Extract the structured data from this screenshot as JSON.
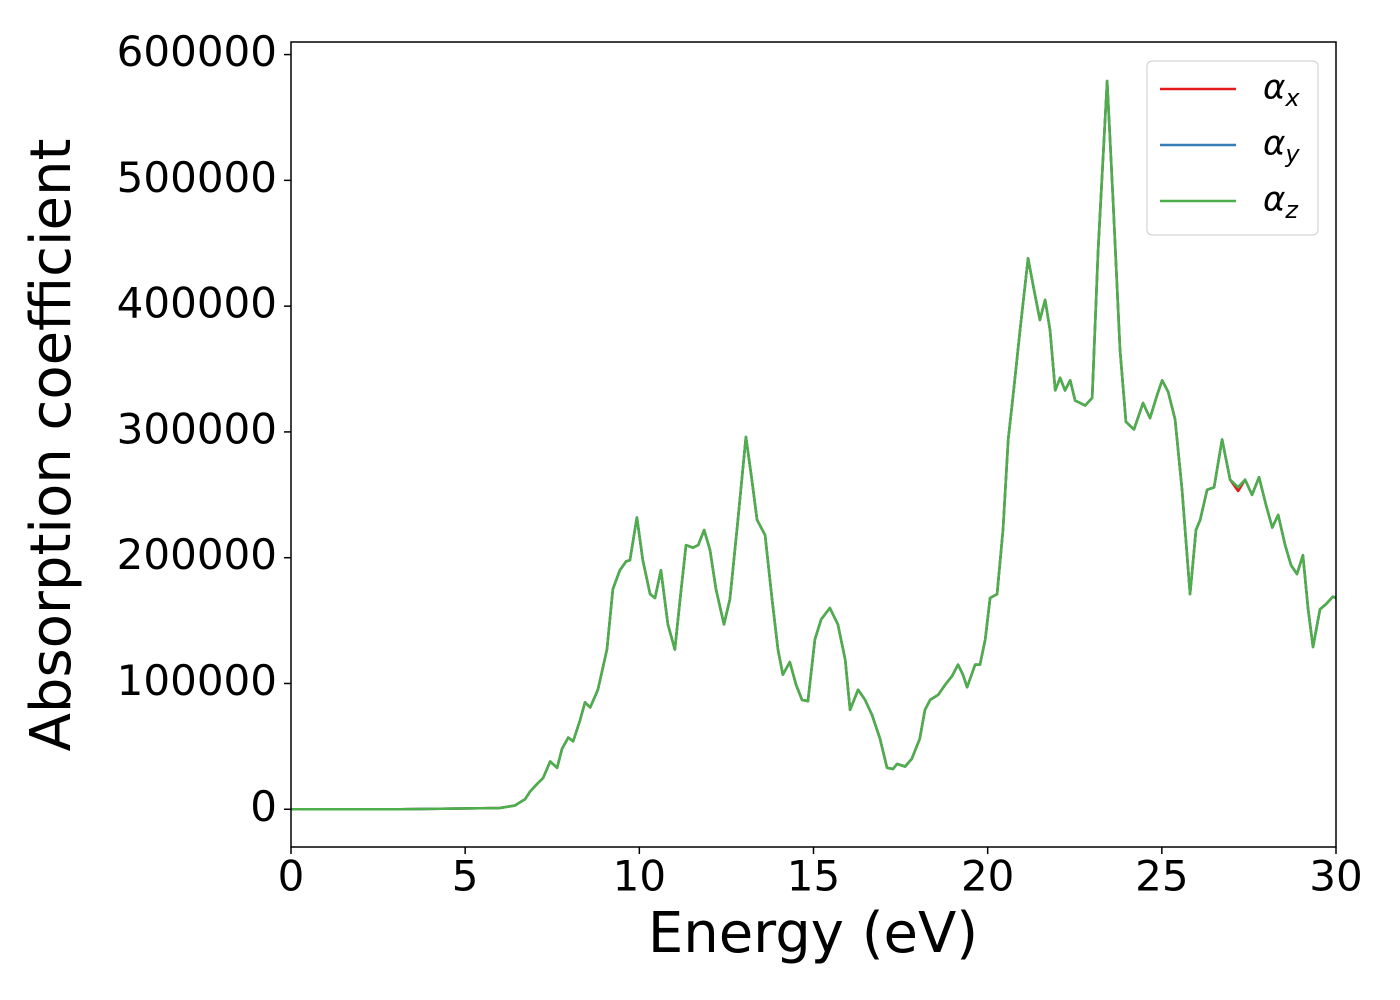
{
  "chart_data": {
    "type": "line",
    "xlabel": "Energy (eV)",
    "ylabel": "Absorption coefficient",
    "xlim": [
      0,
      30
    ],
    "xticks": [
      0,
      5,
      10,
      15,
      20,
      25,
      30
    ],
    "ylim": [
      -30000,
      610000
    ],
    "yticks": [
      0,
      100000,
      200000,
      300000,
      400000,
      500000,
      600000
    ],
    "grid": false,
    "legend": "upper right",
    "x": [
      0,
      3.13,
      5.99,
      6.43,
      6.72,
      6.86,
      7.06,
      7.24,
      7.44,
      7.64,
      7.78,
      7.96,
      8.1,
      8.3,
      8.44,
      8.59,
      8.81,
      9.07,
      9.24,
      9.44,
      9.62,
      9.73,
      9.93,
      10.1,
      10.31,
      10.45,
      10.62,
      10.82,
      11.02,
      11.17,
      11.34,
      11.54,
      11.69,
      11.86,
      12.03,
      12.2,
      12.43,
      12.6,
      12.83,
      13.06,
      13.23,
      13.38,
      13.61,
      13.81,
      13.98,
      14.12,
      14.32,
      14.5,
      14.67,
      14.84,
      15.04,
      15.22,
      15.47,
      15.7,
      15.91,
      16.05,
      16.28,
      16.48,
      16.68,
      16.91,
      17.11,
      17.28,
      17.4,
      17.63,
      17.82,
      18.05,
      18.2,
      18.35,
      18.58,
      18.78,
      18.98,
      19.15,
      19.29,
      19.41,
      19.64,
      19.78,
      19.93,
      20.07,
      20.27,
      20.44,
      20.59,
      20.73,
      20.93,
      21.16,
      21.33,
      21.5,
      21.65,
      21.79,
      21.94,
      22.08,
      22.22,
      22.37,
      22.51,
      22.8,
      23.0,
      23.17,
      23.43,
      23.6,
      23.8,
      23.97,
      24.2,
      24.46,
      24.66,
      24.86,
      25.01,
      25.18,
      25.38,
      25.58,
      25.81,
      25.98,
      26.1,
      26.3,
      26.5,
      26.73,
      26.96,
      27.19,
      27.39,
      27.59,
      27.79,
      27.99,
      28.17,
      28.34,
      28.54,
      28.71,
      28.88,
      29.05,
      29.2,
      29.34,
      29.54,
      29.71,
      29.91,
      30.0
    ],
    "series": [
      {
        "name": "αx",
        "color": "#e41a1c",
        "values": [
          0,
          0,
          1000,
          3000,
          8000,
          14000,
          20000,
          25000,
          38000,
          33000,
          48000,
          57000,
          54000,
          71000,
          85000,
          81000,
          95000,
          127000,
          175000,
          190000,
          197000,
          198000,
          232000,
          198000,
          171000,
          168000,
          190000,
          147000,
          127000,
          167000,
          210000,
          208000,
          210000,
          222000,
          206000,
          175000,
          147000,
          167000,
          230000,
          296000,
          262000,
          230000,
          218000,
          167000,
          127000,
          107000,
          117000,
          99000,
          87000,
          86000,
          135000,
          151000,
          160000,
          147000,
          119000,
          79000,
          95000,
          87000,
          75000,
          56000,
          33000,
          32000,
          36000,
          34000,
          40000,
          56000,
          79000,
          87000,
          91000,
          99000,
          106000,
          115000,
          107000,
          97000,
          115000,
          115000,
          135000,
          168000,
          171000,
          222000,
          294000,
          329000,
          381000,
          438000,
          413000,
          389000,
          405000,
          381000,
          333000,
          343000,
          333000,
          341000,
          325000,
          321000,
          327000,
          444000,
          579000,
          484000,
          365000,
          308000,
          302000,
          323000,
          311000,
          329000,
          341000,
          332000,
          310000,
          254000,
          171000,
          222000,
          230000,
          254000,
          256000,
          294000,
          262000,
          253000,
          262000,
          250000,
          264000,
          242000,
          224000,
          234000,
          210000,
          194000,
          187000,
          202000,
          159000,
          129000,
          159000,
          163000,
          169000,
          168000
        ]
      },
      {
        "name": "αy",
        "color": "#377eb8",
        "values": [
          0,
          0,
          1000,
          3000,
          8000,
          14000,
          20000,
          25000,
          38000,
          33000,
          48000,
          57000,
          54000,
          71000,
          85000,
          81000,
          95000,
          127000,
          175000,
          190000,
          197000,
          198000,
          232000,
          198000,
          171000,
          168000,
          190000,
          147000,
          127000,
          167000,
          210000,
          208000,
          210000,
          222000,
          206000,
          175000,
          147000,
          167000,
          230000,
          296000,
          262000,
          230000,
          218000,
          167000,
          127000,
          107000,
          117000,
          99000,
          87000,
          86000,
          135000,
          151000,
          160000,
          147000,
          119000,
          79000,
          95000,
          87000,
          75000,
          56000,
          33000,
          32000,
          36000,
          34000,
          40000,
          56000,
          79000,
          87000,
          91000,
          99000,
          106000,
          115000,
          107000,
          97000,
          115000,
          115000,
          135000,
          168000,
          171000,
          222000,
          294000,
          329000,
          381000,
          438000,
          413000,
          389000,
          405000,
          381000,
          333000,
          343000,
          333000,
          341000,
          325000,
          321000,
          327000,
          444000,
          579000,
          484000,
          365000,
          308000,
          302000,
          323000,
          311000,
          329000,
          341000,
          332000,
          310000,
          254000,
          171000,
          222000,
          230000,
          254000,
          256000,
          294000,
          262000,
          256000,
          262000,
          250000,
          264000,
          242000,
          224000,
          234000,
          210000,
          194000,
          187000,
          202000,
          159000,
          129000,
          159000,
          163000,
          169000,
          168000
        ]
      },
      {
        "name": "αz",
        "color": "#4daf4a",
        "values": [
          0,
          0,
          1000,
          3000,
          8000,
          14000,
          20000,
          25000,
          38000,
          33000,
          48000,
          57000,
          54000,
          71000,
          85000,
          81000,
          95000,
          127000,
          175000,
          190000,
          197000,
          198000,
          232000,
          198000,
          171000,
          168000,
          190000,
          147000,
          127000,
          167000,
          210000,
          208000,
          210000,
          222000,
          206000,
          175000,
          147000,
          167000,
          230000,
          296000,
          262000,
          230000,
          218000,
          167000,
          127000,
          107000,
          117000,
          99000,
          87000,
          86000,
          135000,
          151000,
          160000,
          147000,
          119000,
          79000,
          95000,
          87000,
          75000,
          56000,
          33000,
          32000,
          36000,
          34000,
          40000,
          56000,
          79000,
          87000,
          91000,
          99000,
          106000,
          115000,
          107000,
          97000,
          115000,
          115000,
          135000,
          168000,
          171000,
          222000,
          294000,
          329000,
          381000,
          438000,
          413000,
          389000,
          405000,
          381000,
          333000,
          343000,
          333000,
          341000,
          325000,
          321000,
          327000,
          444000,
          579000,
          484000,
          365000,
          308000,
          302000,
          323000,
          311000,
          329000,
          341000,
          332000,
          310000,
          254000,
          171000,
          222000,
          230000,
          254000,
          256000,
          294000,
          262000,
          256000,
          262000,
          250000,
          264000,
          242000,
          224000,
          234000,
          210000,
          194000,
          187000,
          202000,
          159000,
          129000,
          159000,
          163000,
          169000,
          168000
        ]
      }
    ]
  }
}
